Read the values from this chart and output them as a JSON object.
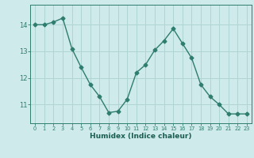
{
  "x": [
    0,
    1,
    2,
    3,
    4,
    5,
    6,
    7,
    8,
    9,
    10,
    11,
    12,
    13,
    14,
    15,
    16,
    17,
    18,
    19,
    20,
    21,
    22,
    23
  ],
  "y": [
    14.0,
    14.0,
    14.1,
    14.25,
    13.1,
    12.4,
    11.75,
    11.3,
    10.7,
    10.75,
    11.2,
    12.2,
    12.5,
    13.05,
    13.4,
    13.85,
    13.3,
    12.75,
    11.75,
    11.3,
    11.0,
    10.65,
    10.65,
    10.65
  ],
  "line_color": "#2e7d6e",
  "marker": "D",
  "markersize": 2.5,
  "linewidth": 1.0,
  "background_color": "#ceeaea",
  "grid_color": "#aed4d4",
  "axis_color": "#2e7d6e",
  "tick_color": "#2e7d6e",
  "label_color": "#1a5c52",
  "xlabel": "Humidex (Indice chaleur)",
  "xlabel_fontsize": 6.5,
  "yticks": [
    11,
    12,
    13,
    14
  ],
  "xticks": [
    0,
    1,
    2,
    3,
    4,
    5,
    6,
    7,
    8,
    9,
    10,
    11,
    12,
    13,
    14,
    15,
    16,
    17,
    18,
    19,
    20,
    21,
    22,
    23
  ],
  "ylim": [
    10.3,
    14.75
  ],
  "xlim": [
    -0.5,
    23.5
  ]
}
